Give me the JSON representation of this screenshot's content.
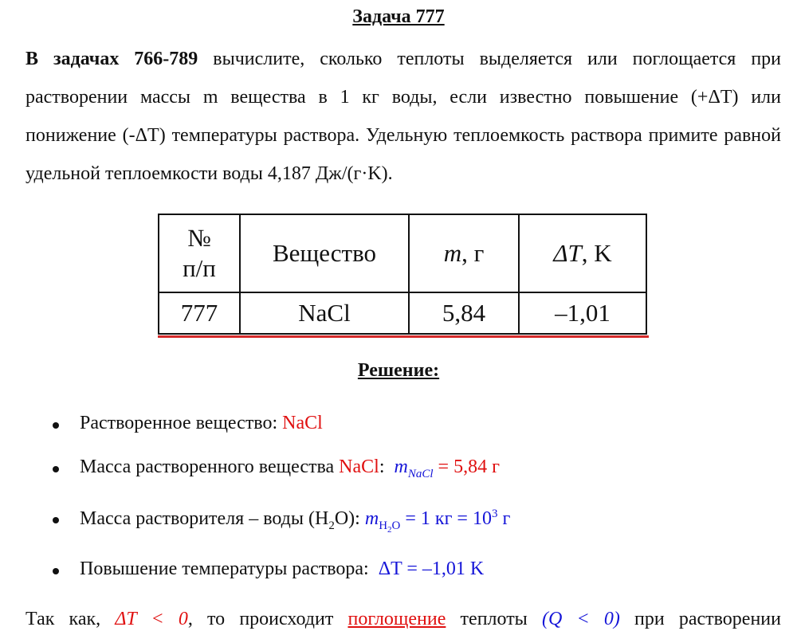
{
  "title": "Задача 777",
  "intro": {
    "bold": "В задачах 766-789",
    "text": " вычислите, сколько теплоты выделяется или поглощается при растворении массы m вещества в 1 кг воды, если известно повышение (+ΔT) или понижение (-ΔT) температуры раствора. Удельную теплоемкость раствора примите равной удельной теплоемкости воды 4,187 Дж/(г·K)."
  },
  "table": {
    "header": [
      "№ п/п",
      "Вещество",
      {
        "symbol": "m",
        "unit": ", г"
      },
      {
        "symbol": "ΔT",
        "unit": ", K"
      }
    ],
    "rows": [
      [
        "777",
        "NaCl",
        "5,84",
        "–1,01"
      ]
    ]
  },
  "solution_title": "Решение:",
  "items": [
    {
      "label": "Растворенное вещество: ",
      "substance": "NaCl"
    },
    {
      "label": "Масса растворенного вещества ",
      "substance": "NaCl",
      "colon": ":",
      "symbol": "m",
      "subscript": "NaCl",
      "equation": "= 5,84 г"
    },
    {
      "label": [
        "Масса растворителя – воды (H",
        "2",
        "O): "
      ],
      "symbol": "m",
      "subscript": [
        "H",
        "2",
        "O"
      ],
      "equation": "= 1 кг = 10",
      "power": "3",
      "unit": " г"
    },
    {
      "label": "Повышение температуры раствора: ",
      "equation": "ΔT = –1,01 K"
    }
  ],
  "conclusion": [
    "Так как, ",
    "ΔT < 0",
    ", то происходит ",
    "поглощение",
    " теплоты ",
    "(Q < 0)",
    " при растворении"
  ]
}
